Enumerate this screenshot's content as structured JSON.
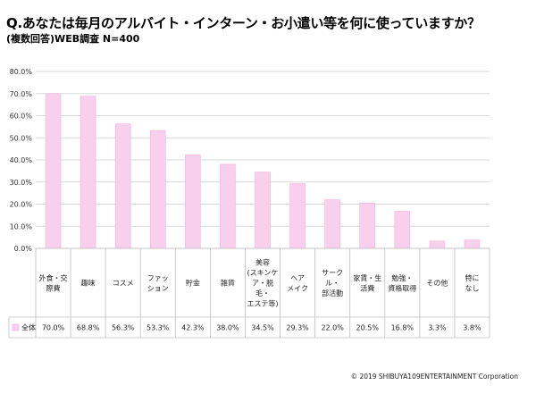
{
  "title": "Q.あなたは毎月のアルバイト・インターン・お小遣い等を何に使っていますか？",
  "subtitle": "(複数回答)WEB調査 N=400",
  "copyright": "© 2019 SHIBUYA109ENTERTAINMENT  Corporation",
  "colors": {
    "bar": "#F8CFEC",
    "bar_stroke": "#EFB5DF",
    "grid": "#D9D9D9",
    "table_line": "#BFBFBF"
  },
  "chart_data": {
    "type": "bar",
    "categories": [
      [
        "外食・交",
        "際費"
      ],
      [
        "趣味"
      ],
      [
        "コスメ"
      ],
      [
        "ファッ",
        "ション"
      ],
      [
        "貯金"
      ],
      [
        "雑貨"
      ],
      [
        "美容",
        "(スキンケ",
        "ア・脱",
        "毛・",
        "エステ等)"
      ],
      [
        "ヘア",
        "メイク"
      ],
      [
        "サーク",
        "ル・",
        "部活動"
      ],
      [
        "家賃・生",
        "活費"
      ],
      [
        "勉強・",
        "資格取得"
      ],
      [
        "その他"
      ],
      [
        "特に",
        "なし"
      ]
    ],
    "series": [
      {
        "name": "全体",
        "values": [
          70.0,
          68.8,
          56.3,
          53.3,
          42.3,
          38.0,
          34.5,
          29.3,
          22.0,
          20.5,
          16.8,
          3.3,
          3.8
        ],
        "labels": [
          "70.0%",
          "68.8%",
          "56.3%",
          "53.3%",
          "42.3%",
          "38.0%",
          "34.5%",
          "29.3%",
          "22.0%",
          "20.5%",
          "16.8%",
          "3.3%",
          "3.8%"
        ]
      }
    ],
    "yticks": [
      "0.0%",
      "10.0%",
      "20.0%",
      "30.0%",
      "40.0%",
      "50.0%",
      "60.0%",
      "70.0%",
      "80.0%"
    ],
    "ylim": [
      0,
      80
    ],
    "grid": true,
    "legend": "data-table-left"
  }
}
